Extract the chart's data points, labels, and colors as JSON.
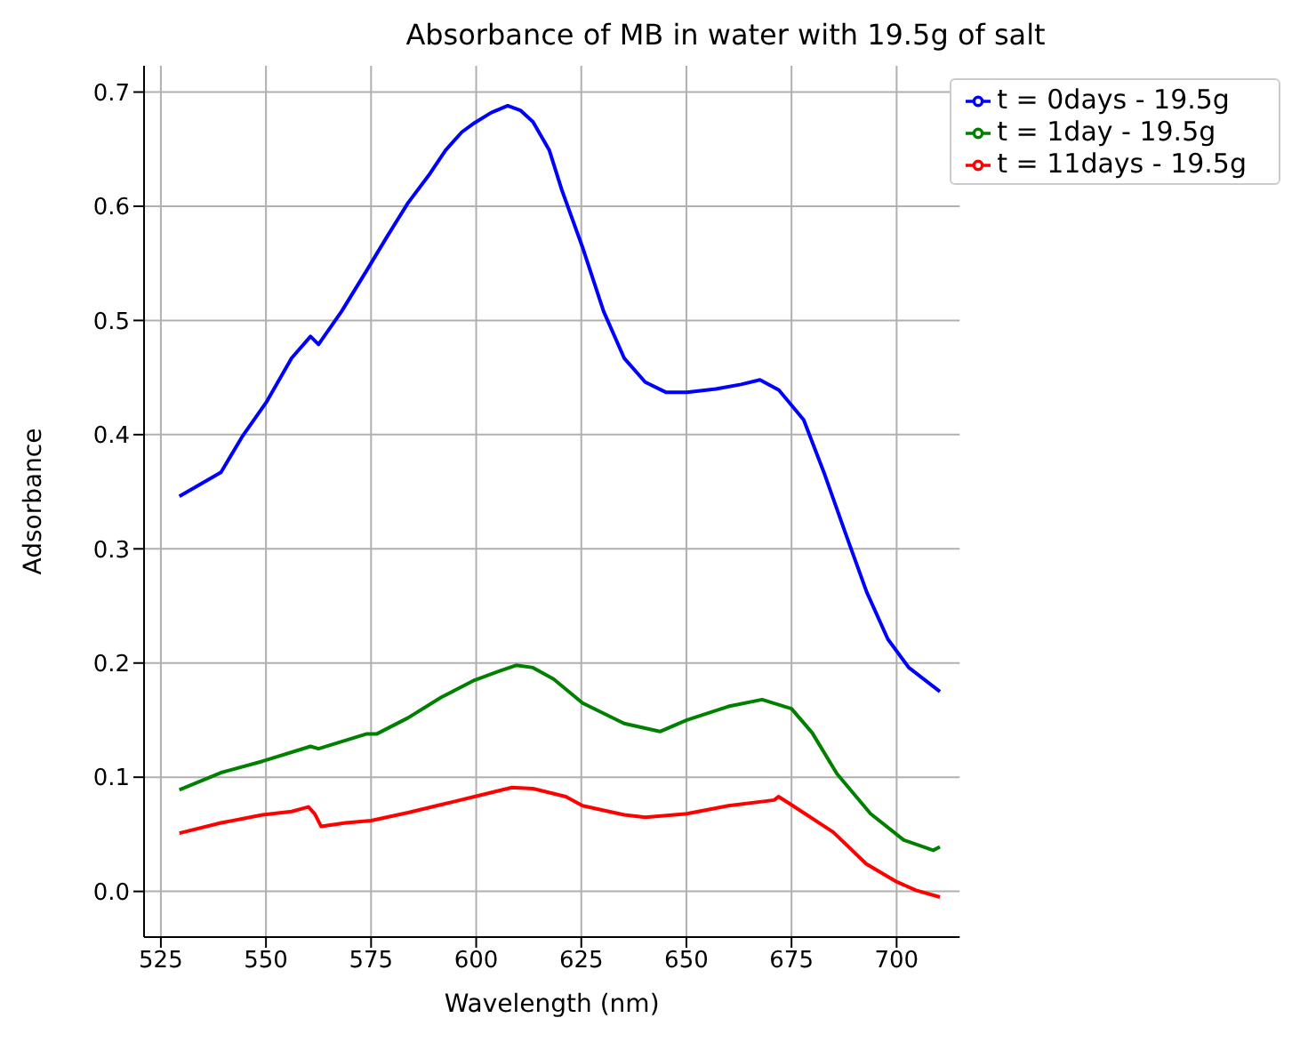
{
  "chart_data": {
    "type": "line",
    "title": "Absorbance of MB in water with 19.5g of salt",
    "xlabel": "Wavelength (nm)",
    "ylabel": "Adsorbance",
    "xlim": [
      521,
      715
    ],
    "xticks": [
      525,
      550,
      575,
      600,
      625,
      650,
      675,
      700
    ],
    "ylim": [
      -0.04,
      0.723
    ],
    "yticks": [
      {
        "value": 0,
        "label": "0.0"
      },
      {
        "value": 0.1,
        "label": "0.1"
      },
      {
        "value": 0.2,
        "label": "0.2"
      },
      {
        "value": 0.3,
        "label": "0.3"
      },
      {
        "value": 0.4,
        "label": "0.4"
      },
      {
        "value": 0.5,
        "label": "0.5"
      },
      {
        "value": 0.6,
        "label": "0.6"
      },
      {
        "value": 0.7,
        "label": "0.7"
      }
    ],
    "grid": true,
    "legend": "top right",
    "series": [
      {
        "name": "t = 0days - 19.5g",
        "color": "#0000ff",
        "x": [
          529.4,
          539.3,
          544.3,
          550.2,
          556.1,
          560.6,
          562.5,
          568,
          574,
          578.9,
          583.8,
          588.7,
          592.7,
          596.6,
          599.6,
          603.6,
          607.5,
          610.5,
          613.5,
          617.4,
          620.3,
          625.3,
          630.3,
          635.2,
          640.2,
          645.2,
          650.1,
          657,
          663,
          667.5,
          672,
          677.9,
          682.9,
          687.9,
          692.9,
          697.9,
          702.9,
          710.3
        ],
        "values": [
          0.346,
          0.367,
          0.398,
          0.429,
          0.467,
          0.486,
          0.479,
          0.508,
          0.544,
          0.574,
          0.603,
          0.627,
          0.649,
          0.665,
          0.673,
          0.682,
          0.688,
          0.684,
          0.674,
          0.649,
          0.615,
          0.564,
          0.508,
          0.467,
          0.446,
          0.437,
          0.437,
          0.44,
          0.444,
          0.448,
          0.439,
          0.413,
          0.365,
          0.313,
          0.262,
          0.221,
          0.196,
          0.175
        ]
      },
      {
        "name": "t = 1day - 19.5g",
        "color": "#008000",
        "x": [
          529.4,
          539.3,
          549.2,
          560.6,
          562.5,
          574,
          576.4,
          583.8,
          591.7,
          599.6,
          605.6,
          609.5,
          613.5,
          618.4,
          625.3,
          635.2,
          643.7,
          650.1,
          660,
          668,
          675,
          679.9,
          685.8,
          693.8,
          701.7,
          708.7,
          710.3
        ],
        "values": [
          0.089,
          0.104,
          0.114,
          0.127,
          0.125,
          0.138,
          0.138,
          0.152,
          0.17,
          0.185,
          0.193,
          0.198,
          0.196,
          0.186,
          0.165,
          0.147,
          0.14,
          0.15,
          0.162,
          0.168,
          0.16,
          0.139,
          0.103,
          0.068,
          0.045,
          0.036,
          0.039
        ]
      },
      {
        "name": "t = 11days - 19.5g",
        "color": "#ff0000",
        "x": [
          529.4,
          539.3,
          549.2,
          556.1,
          560.1,
          561.6,
          563.1,
          569,
          575,
          583.8,
          591.7,
          599.6,
          608.5,
          613.5,
          621.3,
          625.3,
          635.2,
          640.2,
          650.1,
          660,
          670.9,
          671.9,
          674.9,
          684.9,
          692.8,
          699.7,
          704.6,
          710.3
        ],
        "values": [
          0.051,
          0.06,
          0.067,
          0.07,
          0.074,
          0.068,
          0.057,
          0.06,
          0.062,
          0.069,
          0.076,
          0.083,
          0.091,
          0.09,
          0.083,
          0.075,
          0.067,
          0.065,
          0.068,
          0.075,
          0.08,
          0.083,
          0.076,
          0.052,
          0.024,
          0.009,
          0.001,
          -0.005
        ]
      }
    ]
  }
}
